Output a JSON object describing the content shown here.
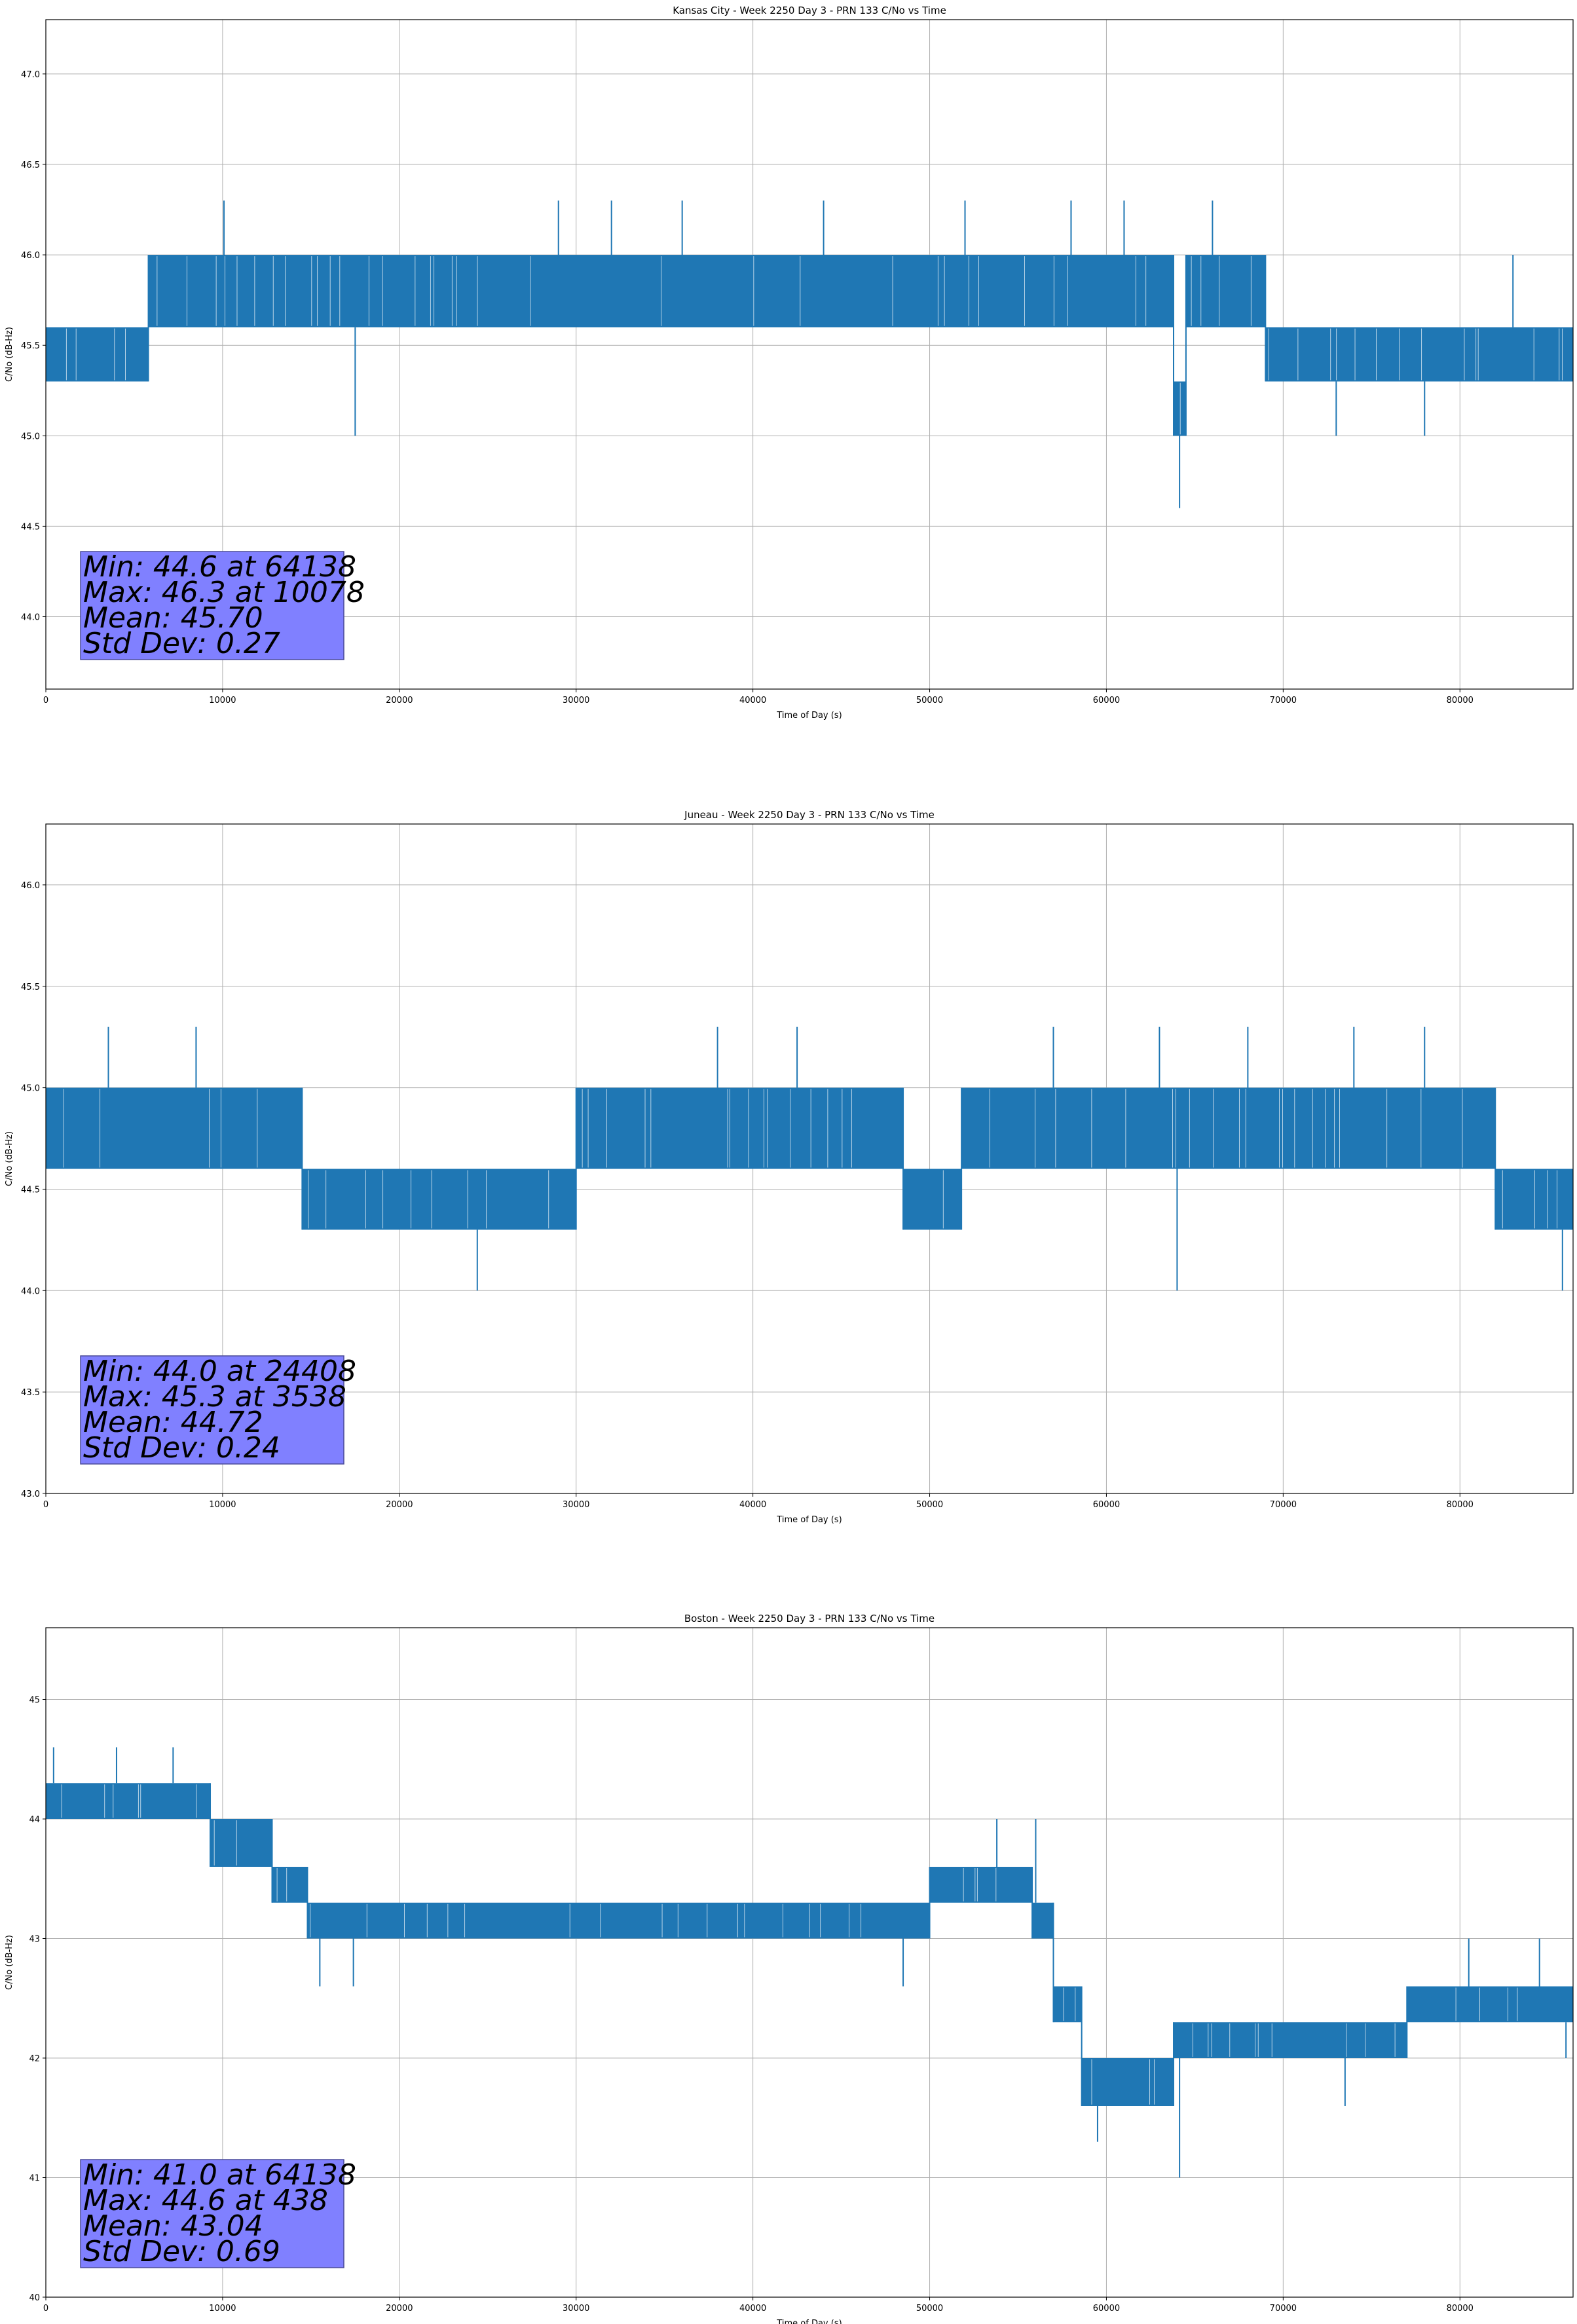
{
  "figure": {
    "colors": {
      "line": "#1f77b4",
      "grid": "#b0b0b0",
      "stats_box_fill": "#8080ff",
      "stats_box_border": "#4c4c99"
    }
  },
  "chart_data": [
    {
      "type": "line",
      "title": "Kansas City - Week 2250 Day 3 - PRN 133 C/No vs Time",
      "xlabel": "Time of Day (s)",
      "ylabel": "C/No (dB-Hz)",
      "xlim": [
        0,
        86400
      ],
      "ylim": [
        43.6,
        47.3
      ],
      "xticks": [
        0,
        10000,
        20000,
        30000,
        40000,
        50000,
        60000,
        70000,
        80000
      ],
      "yticks": [
        44.0,
        44.5,
        45.0,
        45.5,
        46.0,
        46.5,
        47.0
      ],
      "ytick_decimals": 1,
      "grid": true,
      "series": [
        {
          "values_note_levels": [
            45.0,
            45.3,
            45.6,
            46.0,
            46.3
          ],
          "segments": [
            {
              "x": [
                0,
                5800
              ],
              "low": 45.3,
              "high": 45.6
            },
            {
              "x": [
                5800,
                63800
              ],
              "low": 45.6,
              "high": 46.0
            },
            {
              "x": [
                63800,
                64500
              ],
              "low": 45.0,
              "high": 45.3
            },
            {
              "x": [
                64500,
                69000
              ],
              "low": 45.6,
              "high": 46.0
            },
            {
              "x": [
                69000,
                86400
              ],
              "low": 45.3,
              "high": 45.6
            }
          ],
          "spikes": [
            {
              "x": 10078,
              "y": 46.3
            },
            {
              "x": 17500,
              "y": 45.0
            },
            {
              "x": 29000,
              "y": 46.3
            },
            {
              "x": 32000,
              "y": 46.3
            },
            {
              "x": 36000,
              "y": 46.3
            },
            {
              "x": 44000,
              "y": 46.3
            },
            {
              "x": 52000,
              "y": 46.3
            },
            {
              "x": 58000,
              "y": 46.3
            },
            {
              "x": 61000,
              "y": 46.3
            },
            {
              "x": 64138,
              "y": 44.6
            },
            {
              "x": 66000,
              "y": 46.3
            },
            {
              "x": 73000,
              "y": 45.0
            },
            {
              "x": 78000,
              "y": 45.0
            },
            {
              "x": 83000,
              "y": 46.0
            }
          ]
        }
      ],
      "stats": [
        "Min: 44.6 at 64138",
        "Max: 46.3 at 10078",
        "Mean: 45.70",
        "Std Dev: 0.27"
      ]
    },
    {
      "type": "line",
      "title": "Juneau - Week 2250 Day 3 - PRN 133 C/No vs Time",
      "xlabel": "Time of Day (s)",
      "ylabel": "C/No (dB-Hz)",
      "xlim": [
        0,
        86400
      ],
      "ylim": [
        43.0,
        46.3
      ],
      "xticks": [
        0,
        10000,
        20000,
        30000,
        40000,
        50000,
        60000,
        70000,
        80000
      ],
      "yticks": [
        43.0,
        43.5,
        44.0,
        44.5,
        45.0,
        45.5,
        46.0
      ],
      "ytick_decimals": 1,
      "grid": true,
      "series": [
        {
          "values_note_levels": [
            44.0,
            44.3,
            44.6,
            45.0,
            45.3
          ],
          "segments": [
            {
              "x": [
                0,
                14500
              ],
              "low": 44.6,
              "high": 45.0
            },
            {
              "x": [
                14500,
                30000
              ],
              "low": 44.3,
              "high": 44.6
            },
            {
              "x": [
                30000,
                48500
              ],
              "low": 44.6,
              "high": 45.0
            },
            {
              "x": [
                48500,
                51800
              ],
              "low": 44.3,
              "high": 44.6
            },
            {
              "x": [
                51800,
                82000
              ],
              "low": 44.6,
              "high": 45.0
            },
            {
              "x": [
                82000,
                86400
              ],
              "low": 44.3,
              "high": 44.6
            }
          ],
          "spikes": [
            {
              "x": 3538,
              "y": 45.3
            },
            {
              "x": 8500,
              "y": 45.3
            },
            {
              "x": 24408,
              "y": 44.0
            },
            {
              "x": 38000,
              "y": 45.3
            },
            {
              "x": 42500,
              "y": 45.3
            },
            {
              "x": 57000,
              "y": 45.3
            },
            {
              "x": 63000,
              "y": 45.3
            },
            {
              "x": 64000,
              "y": 44.0
            },
            {
              "x": 68000,
              "y": 45.3
            },
            {
              "x": 74000,
              "y": 45.3
            },
            {
              "x": 78000,
              "y": 45.3
            },
            {
              "x": 85800,
              "y": 44.0
            }
          ]
        }
      ],
      "stats": [
        "Min: 44.0 at 24408",
        "Max: 45.3 at 3538",
        "Mean: 44.72",
        "Std Dev: 0.24"
      ]
    },
    {
      "type": "line",
      "title": "Boston - Week 2250 Day 3 - PRN 133 C/No vs Time",
      "xlabel": "Time of Day (s)",
      "ylabel": "C/No (dB-Hz)",
      "xlim": [
        0,
        86400
      ],
      "ylim": [
        40.0,
        45.6
      ],
      "xticks": [
        0,
        10000,
        20000,
        30000,
        40000,
        50000,
        60000,
        70000,
        80000
      ],
      "yticks": [
        40,
        41,
        42,
        43,
        44,
        45
      ],
      "ytick_decimals": 0,
      "grid": true,
      "series": [
        {
          "values_note_levels": [
            41.0,
            41.6,
            42.0,
            42.3,
            42.6,
            43.0,
            43.3,
            43.6,
            44.0,
            44.3,
            44.6
          ],
          "segments": [
            {
              "x": [
                0,
                9300
              ],
              "low": 44.0,
              "high": 44.3
            },
            {
              "x": [
                9300,
                12800
              ],
              "low": 43.6,
              "high": 44.0
            },
            {
              "x": [
                12800,
                14800
              ],
              "low": 43.3,
              "high": 43.6
            },
            {
              "x": [
                14800,
                50000
              ],
              "low": 43.0,
              "high": 43.3
            },
            {
              "x": [
                50000,
                55800
              ],
              "low": 43.3,
              "high": 43.6
            },
            {
              "x": [
                55800,
                57000
              ],
              "low": 43.0,
              "high": 43.3
            },
            {
              "x": [
                57000,
                58600
              ],
              "low": 42.3,
              "high": 42.6
            },
            {
              "x": [
                58600,
                63800
              ],
              "low": 41.6,
              "high": 42.0
            },
            {
              "x": [
                63800,
                77000
              ],
              "low": 42.0,
              "high": 42.3
            },
            {
              "x": [
                77000,
                86400
              ],
              "low": 42.3,
              "high": 42.6
            }
          ],
          "spikes": [
            {
              "x": 438,
              "y": 44.6
            },
            {
              "x": 4000,
              "y": 44.6
            },
            {
              "x": 7200,
              "y": 44.6
            },
            {
              "x": 15500,
              "y": 42.6
            },
            {
              "x": 17400,
              "y": 42.6
            },
            {
              "x": 48500,
              "y": 42.6
            },
            {
              "x": 53800,
              "y": 44.0
            },
            {
              "x": 56000,
              "y": 44.0
            },
            {
              "x": 59500,
              "y": 41.3
            },
            {
              "x": 64138,
              "y": 41.0
            },
            {
              "x": 73500,
              "y": 41.6
            },
            {
              "x": 80500,
              "y": 43.0
            },
            {
              "x": 84500,
              "y": 43.0
            },
            {
              "x": 86000,
              "y": 42.0
            }
          ]
        }
      ],
      "stats": [
        "Min: 41.0 at 64138",
        "Max: 44.6 at 438",
        "Mean: 43.04",
        "Std Dev: 0.69"
      ]
    }
  ]
}
